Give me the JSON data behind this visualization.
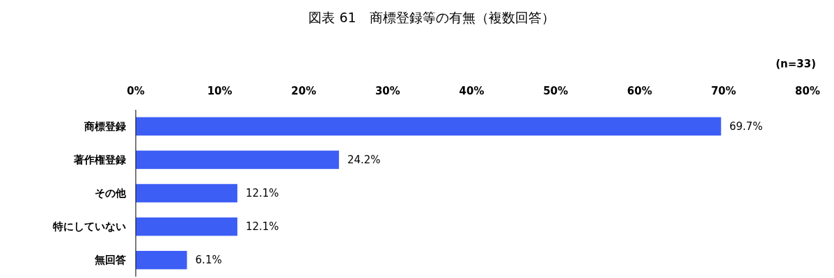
{
  "chart_data": {
    "type": "bar",
    "orientation": "horizontal",
    "title": "図表 61　商標登録等の有無（複数回答）",
    "annotations": [
      "(n=33)"
    ],
    "categories": [
      "商標登録",
      "著作権登録",
      "その他",
      "特にしていない",
      "無回答"
    ],
    "values": [
      69.7,
      24.2,
      12.1,
      12.1,
      6.1
    ],
    "value_labels": [
      "69.7%",
      "24.2%",
      "12.1%",
      "12.1%",
      "6.1%"
    ],
    "color": "#3d5ef5",
    "xlim": [
      0,
      80
    ],
    "xticks": [
      {
        "value": 0,
        "label": "0%"
      },
      {
        "value": 10,
        "label": "10%"
      },
      {
        "value": 20,
        "label": "20%"
      },
      {
        "value": 30,
        "label": "30%"
      },
      {
        "value": 40,
        "label": "40%"
      },
      {
        "value": 50,
        "label": "50%"
      },
      {
        "value": 60,
        "label": "60%"
      },
      {
        "value": 70,
        "label": "70%"
      },
      {
        "value": 80,
        "label": "80%"
      }
    ],
    "grid": false
  }
}
